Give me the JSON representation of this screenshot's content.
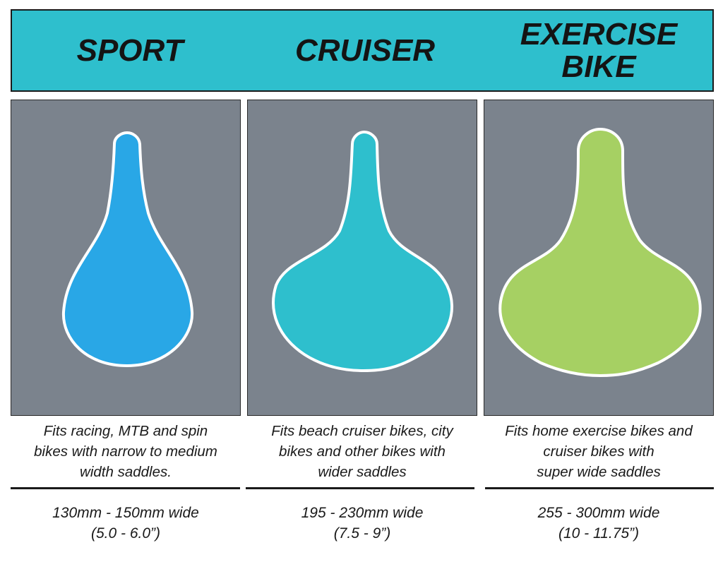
{
  "columns": [
    {
      "title": "SPORT",
      "saddle_color": "#29a7e6",
      "description": "Fits racing, MTB and spin\nbikes with narrow to medium\nwidth saddles.",
      "width_range": "130mm - 150mm wide",
      "width_inches": "(5.0 - 6.0”)"
    },
    {
      "title": "CRUISER",
      "saddle_color": "#2ebfcd",
      "description": "Fits beach cruiser bikes, city\nbikes and other bikes with\nwider saddles",
      "width_range": "195 - 230mm wide",
      "width_inches": "(7.5 - 9”)"
    },
    {
      "title": "EXERCISE\nBIKE",
      "saddle_color": "#a6d063",
      "description": "Fits home exercise bikes and\ncruiser bikes with\nsuper wide saddles",
      "width_range": "255 - 300mm wide",
      "width_inches": "(10 - 11.75”)"
    }
  ],
  "colors": {
    "header_band": "#2ebfcd",
    "panel_background": "#7b838d",
    "saddle_outline": "#ffffff",
    "text": "#1a1a1a"
  }
}
